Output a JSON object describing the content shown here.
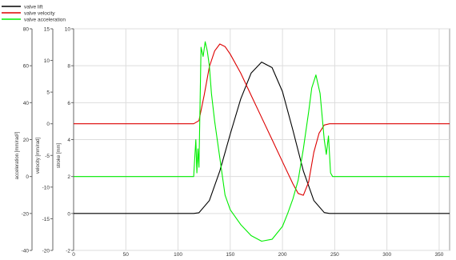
{
  "chart_data": {
    "type": "line",
    "title": "",
    "legend_position": "top-left",
    "grid": true,
    "x_axis": {
      "label": "",
      "range": [
        0,
        360
      ],
      "ticks": [
        0,
        50,
        100,
        150,
        200,
        250,
        300,
        350
      ]
    },
    "y_axes": [
      {
        "id": "acc",
        "label": "acceleration [mm/rad²]",
        "range": [
          -40,
          80
        ],
        "ticks": [
          -40,
          -20,
          0,
          20,
          40,
          60,
          80
        ]
      },
      {
        "id": "vel",
        "label": "velocity [mm/rad]",
        "range": [
          -20,
          15
        ],
        "ticks": [
          -20,
          -15,
          -10,
          -5,
          0,
          5,
          10,
          15
        ]
      },
      {
        "id": "str",
        "label": "stroke [mm]",
        "range": [
          -2,
          10
        ],
        "ticks": [
          -2,
          0,
          2,
          4,
          6,
          8,
          10
        ]
      }
    ],
    "series": [
      {
        "name": "valve lift",
        "color": "#000000",
        "axis": "str",
        "x": [
          0,
          115,
          120,
          130,
          140,
          150,
          160,
          170,
          180,
          190,
          200,
          210,
          220,
          230,
          240,
          245,
          360
        ],
        "y": [
          0,
          0,
          0.04,
          0.7,
          2.3,
          4.3,
          6.2,
          7.6,
          8.2,
          7.9,
          6.6,
          4.5,
          2.3,
          0.7,
          0.05,
          0,
          0
        ]
      },
      {
        "name": "valve velocity",
        "color": "#dd0000",
        "axis": "vel",
        "x": [
          0,
          115,
          120,
          125,
          130,
          135,
          140,
          145,
          150,
          160,
          170,
          180,
          190,
          200,
          210,
          215,
          220,
          225,
          230,
          235,
          240,
          245,
          360
        ],
        "y": [
          0,
          0,
          0.5,
          4.5,
          9,
          11.5,
          12.6,
          12.2,
          11,
          8,
          4.5,
          1,
          -2.5,
          -6,
          -9.5,
          -11,
          -11.3,
          -9.2,
          -4.5,
          -1.5,
          -0.2,
          0,
          0
        ]
      },
      {
        "name": "valve acceleration",
        "color": "#00ee00",
        "axis": "acc",
        "x": [
          0,
          115,
          117,
          118,
          119,
          120,
          122,
          124,
          126,
          128,
          130,
          132,
          135,
          140,
          145,
          150,
          160,
          170,
          180,
          190,
          200,
          205,
          210,
          215,
          220,
          225,
          228,
          232,
          236,
          240,
          242,
          244,
          246,
          248,
          360
        ],
        "y": [
          0,
          0,
          20,
          2,
          15,
          5,
          70,
          65,
          73,
          68,
          60,
          45,
          30,
          10,
          -10,
          -18,
          -26,
          -32,
          -35,
          -34,
          -27,
          -20,
          -12,
          -2,
          15,
          35,
          48,
          55,
          45,
          20,
          12,
          22,
          2,
          0,
          0
        ]
      }
    ]
  }
}
